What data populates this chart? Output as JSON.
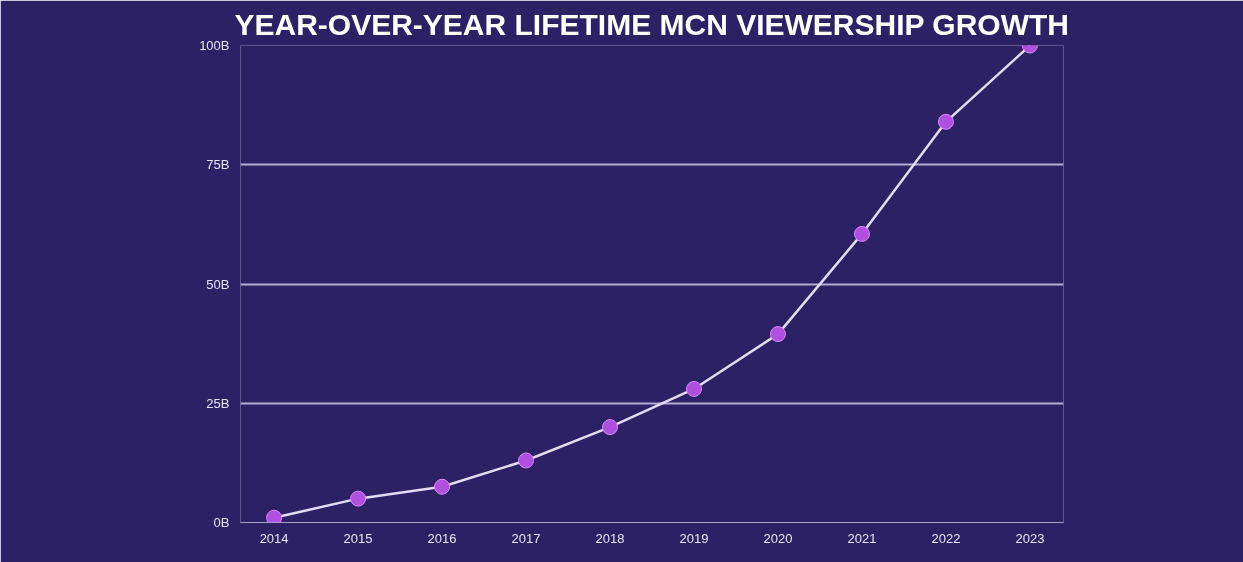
{
  "chart_data": {
    "type": "line",
    "title": "YEAR-OVER-YEAR LIFETIME MCN VIEWERSHIP GROWTH",
    "categories": [
      "2014",
      "2015",
      "2016",
      "2017",
      "2018",
      "2019",
      "2020",
      "2021",
      "2022",
      "2023"
    ],
    "series": [
      {
        "color": "#b04fe0",
        "values": [
          1,
          5,
          7.5,
          13,
          20,
          28,
          39.5,
          60.5,
          84,
          100
        ]
      }
    ],
    "ylim": [
      0,
      100
    ],
    "yticks": [
      {
        "value": 0,
        "label": "0B"
      },
      {
        "value": 25,
        "label": "25B"
      },
      {
        "value": 50,
        "label": "50B"
      },
      {
        "value": 75,
        "label": "75B"
      },
      {
        "value": 100,
        "label": "100B"
      }
    ],
    "grid": "y",
    "marker": "circle",
    "line_style": "solid"
  }
}
